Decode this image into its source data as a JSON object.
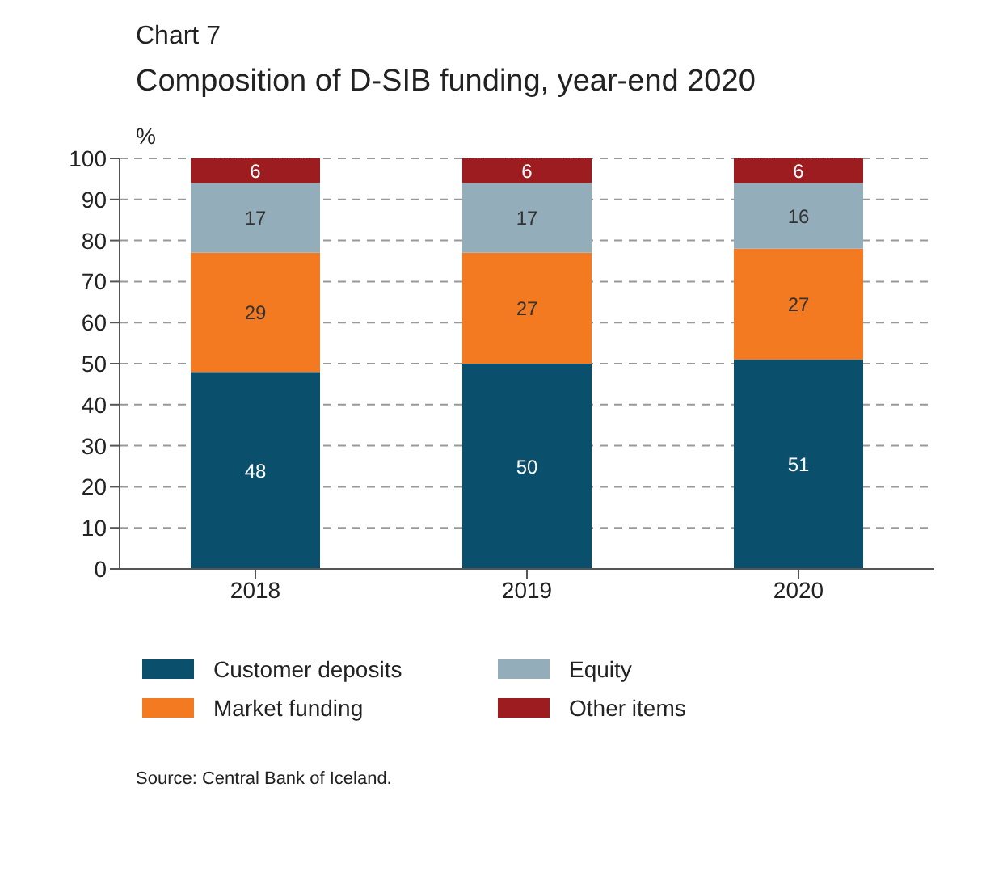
{
  "chart_data": {
    "type": "bar",
    "subtitle": "Chart 7",
    "title": "Composition of D-SIB funding, year-end 2020",
    "ylabel": "%",
    "categories": [
      "2018",
      "2019",
      "2020"
    ],
    "stacked": true,
    "data_labels": true,
    "grid": "y",
    "legend": "bottom",
    "ylim": [
      0,
      100
    ],
    "yticks": [
      0,
      10,
      20,
      30,
      40,
      50,
      60,
      70,
      80,
      90,
      100
    ],
    "series": [
      {
        "name": "Customer deposits",
        "color": "#0a4f6b",
        "values": [
          48,
          50,
          51
        ]
      },
      {
        "name": "Market funding",
        "color": "#f47a22",
        "values": [
          29,
          27,
          27
        ]
      },
      {
        "name": "Equity",
        "color": "#93adbb",
        "values": [
          17,
          17,
          16
        ]
      },
      {
        "name": "Other items",
        "color": "#9c1c20",
        "values": [
          6,
          6,
          6
        ]
      }
    ],
    "annotations": [
      "Source: Central Bank of Iceland."
    ]
  }
}
